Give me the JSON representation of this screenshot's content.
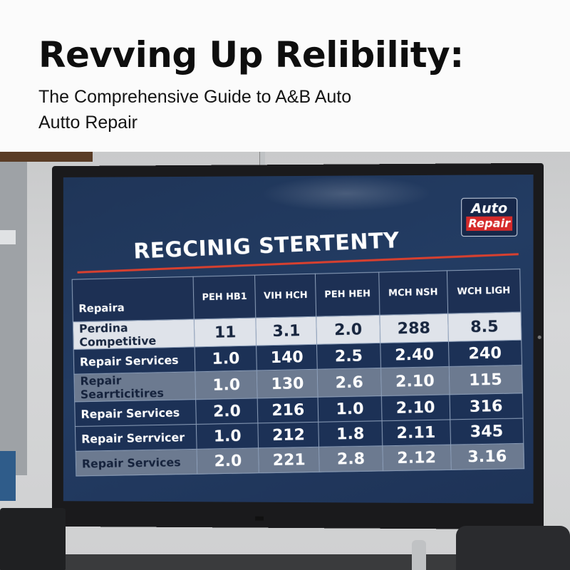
{
  "header": {
    "title": "Revving Up Relibility:",
    "subtitle_line1": "The Comprehensive Guide to A&B Auto",
    "subtitle_line2": "Autto Repair"
  },
  "screen": {
    "logo": {
      "top": "Auto",
      "bottom": "Repair"
    },
    "board_title": "REGCINIG STERTENTY",
    "accent_color": "#d8402f",
    "table": {
      "headers": [
        "Repaira",
        "PEH HB1",
        "VIH HCH",
        "PEH HEH",
        "MCH NSH",
        "WCH LIGH"
      ],
      "rows": [
        {
          "style": "light",
          "cells": [
            "Perdina Competitive",
            "11",
            "3.1",
            "2.0",
            "288",
            "8.5"
          ]
        },
        {
          "style": "dark",
          "cells": [
            "Repair Services",
            "1.0",
            "140",
            "2.5",
            "2.40",
            "240"
          ]
        },
        {
          "style": "grey",
          "cells": [
            "Repair Searrticitires",
            "1.0",
            "130",
            "2.6",
            "2.10",
            "115"
          ]
        },
        {
          "style": "dark",
          "cells": [
            "Repair Services",
            "2.0",
            "216",
            "1.0",
            "2.10",
            "316"
          ]
        },
        {
          "style": "dark",
          "cells": [
            "Repair Serrvicer",
            "1.0",
            "212",
            "1.8",
            "2.11",
            "345"
          ]
        },
        {
          "style": "grey",
          "cells": [
            "Repair Services",
            "2.0",
            "221",
            "2.8",
            "2.12",
            "3.16"
          ]
        }
      ]
    }
  }
}
